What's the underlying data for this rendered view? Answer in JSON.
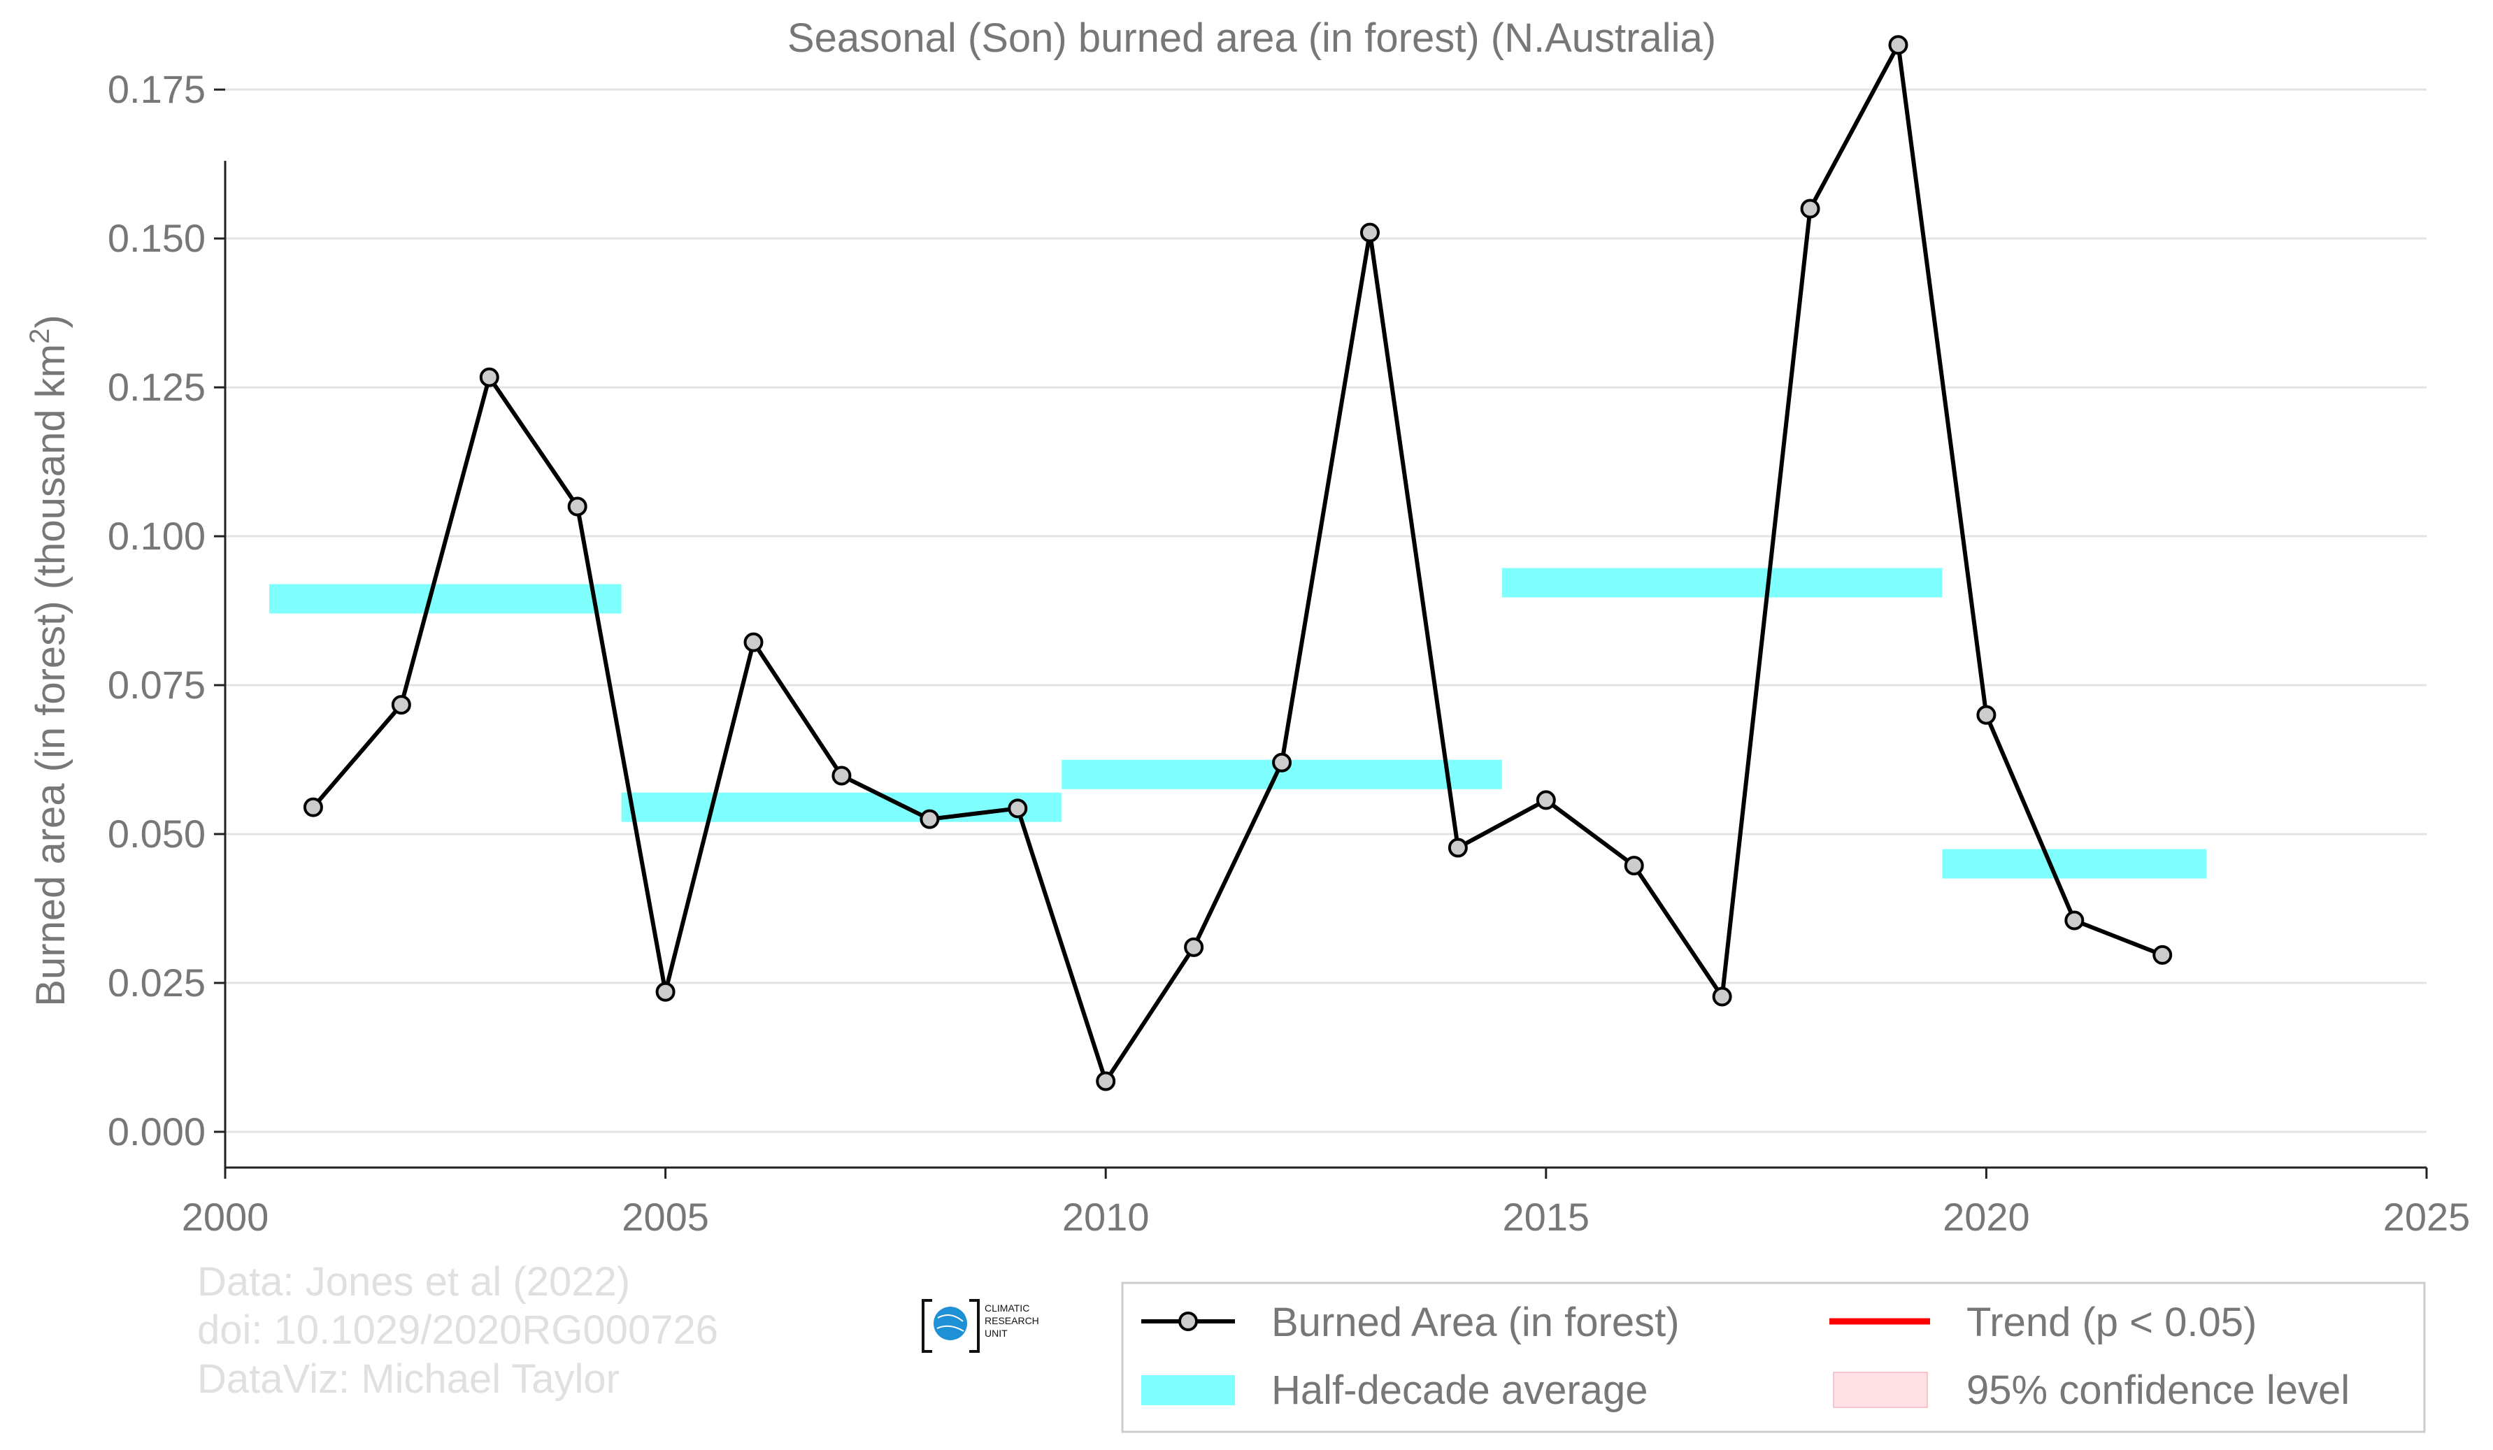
{
  "chart_data": {
    "type": "line",
    "title": "Seasonal (Son) burned area (in forest) (N.Australia)",
    "ylabel_main": "Burned area (in forest) (thousand km",
    "ylabel_sup": "2",
    "ylabel_close": ")",
    "xlabel": "",
    "xlim": [
      2000,
      2025
    ],
    "ylim": [
      -0.006,
      0.183
    ],
    "x_ticks": [
      2000,
      2005,
      2010,
      2015,
      2020,
      2025
    ],
    "x_tick_labels": [
      "2000",
      "2005",
      "2010",
      "2015",
      "2020",
      "2025"
    ],
    "y_ticks": [
      0,
      0.025,
      0.05,
      0.075,
      0.1,
      0.125,
      0.15,
      0.175
    ],
    "y_tick_labels": [
      "0.000",
      "0.025",
      "0.050",
      "0.075",
      "0.100",
      "0.125",
      "0.150",
      "0.175"
    ],
    "grid": true,
    "series": [
      {
        "name": "Burned Area (in forest)",
        "color": "#000000",
        "x": [
          2001,
          2002,
          2003,
          2004,
          2005,
          2006,
          2007,
          2008,
          2009,
          2010,
          2011,
          2012,
          2013,
          2014,
          2015,
          2016,
          2017,
          2018,
          2019,
          2020,
          2021,
          2022
        ],
        "y": [
          0.0545,
          0.0717,
          0.1267,
          0.105,
          0.0235,
          0.0822,
          0.0598,
          0.0525,
          0.0543,
          0.0085,
          0.031,
          0.062,
          0.151,
          0.0477,
          0.0557,
          0.0447,
          0.0227,
          0.155,
          0.1825,
          0.07,
          0.0355,
          0.0297
        ]
      }
    ],
    "half_decade_average": {
      "name": "Half-decade average",
      "color": "#80ffff",
      "segments": [
        {
          "x0": 2000.5,
          "x1": 2004.5,
          "y": 0.0895
        },
        {
          "x0": 2004.5,
          "x1": 2009.5,
          "y": 0.0545
        },
        {
          "x0": 2009.5,
          "x1": 2014.5,
          "y": 0.06
        },
        {
          "x0": 2014.5,
          "x1": 2019.5,
          "y": 0.0922
        },
        {
          "x0": 2019.5,
          "x1": 2022.5,
          "y": 0.045
        }
      ]
    },
    "legend": {
      "placement": "bottom-right",
      "entries": [
        {
          "label": "Burned Area (in forest)",
          "kind": "line-marker",
          "color": "#000000"
        },
        {
          "label": "Half-decade average",
          "kind": "bar",
          "color": "#80ffff"
        },
        {
          "label": "Trend (p < 0.05)",
          "kind": "line",
          "color": "#ff0000"
        },
        {
          "label": "95% confidence level",
          "kind": "patch",
          "color": "#ffe0e4"
        }
      ]
    }
  },
  "credits": {
    "line1": "Data: Jones et al (2022)",
    "line2": "doi: 10.1029/2020RG000726",
    "line3": "DataViz: Michael Taylor"
  },
  "logo": {
    "line1": "CLIMATIC",
    "line2": "RESEARCH",
    "line3": "UNIT"
  }
}
